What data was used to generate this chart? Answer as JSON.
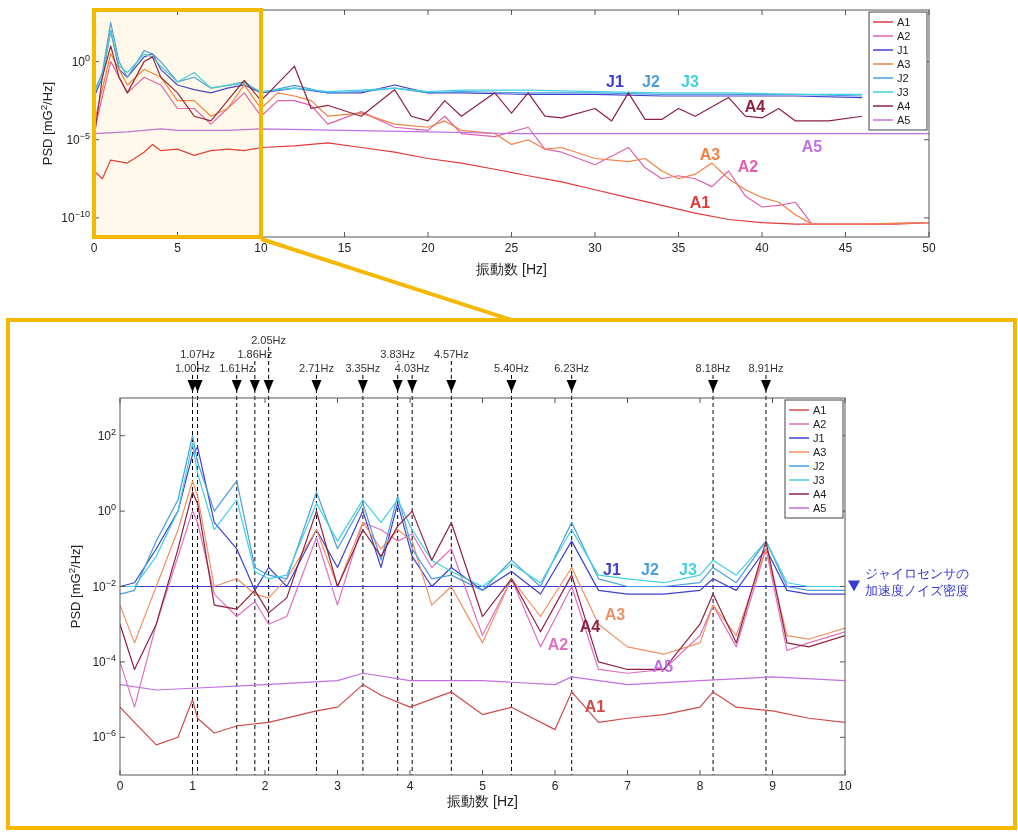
{
  "chart_data": [
    {
      "type": "line",
      "xlabel": "振動数 [Hz]",
      "ylabel": "PSD [mG$^{2}$/Hz]",
      "log": "y",
      "xlim": [
        0,
        50
      ],
      "xticks": [
        0,
        5,
        10,
        15,
        20,
        25,
        30,
        35,
        40,
        45,
        50
      ],
      "ylim": [
        6e-12,
        2000
      ],
      "yticks": [
        {
          "value": 1e-10,
          "label": "10$^{−10}$"
        },
        {
          "value": 1e-05,
          "label": "10$^{−5}$"
        },
        {
          "value": 1,
          "label": "10$^{0}$"
        }
      ],
      "legend": "top right",
      "grid": false,
      "bands": [
        {
          "axis": "x",
          "from": 0,
          "to": 10,
          "color": "#f5b800"
        }
      ],
      "series": [
        {
          "name": "A1",
          "color": "#e03a3a",
          "x": [
            0,
            0.5,
            1,
            2,
            3,
            3.5,
            4,
            5,
            6,
            7,
            8,
            9,
            10,
            12,
            14,
            16,
            18,
            20,
            22,
            24,
            26,
            28,
            30,
            32,
            34,
            36,
            38,
            40,
            42,
            44,
            46,
            48,
            50
          ],
          "values": [
            1e-07,
            3.2e-08,
            5e-07,
            3.2e-07,
            1.6e-06,
            5e-06,
            2e-06,
            2.5e-06,
            1e-06,
            2e-06,
            2.5e-06,
            2e-06,
            3.2e-06,
            4e-06,
            6.3e-06,
            3.2e-06,
            1.6e-06,
            6.3e-07,
            3.2e-07,
            1.3e-07,
            5e-08,
            2e-08,
            6.3e-09,
            2e-09,
            6.3e-10,
            2e-10,
            7.9e-11,
            5e-11,
            4e-11,
            4e-11,
            4e-11,
            4e-11,
            5e-11
          ]
        },
        {
          "name": "A2",
          "color": "#e060b0",
          "x": [
            0,
            1,
            2,
            3,
            4,
            5,
            6,
            7,
            8,
            9,
            10,
            11,
            12,
            13,
            14,
            16,
            18,
            20,
            21,
            22,
            24,
            26,
            27,
            28,
            30,
            32,
            33,
            34,
            35,
            36,
            37,
            38,
            39,
            40,
            41,
            42,
            43,
            46,
            50
          ],
          "values": [
            3.2e-05,
            1,
            0.01,
            0.1,
            0.032,
            0.001,
            0.001,
            0.0001,
            0.001,
            0.01,
            0.00032,
            0.0032,
            0.0032,
            0.0016,
            0.0001,
            0.00063,
            6.3e-05,
            4e-05,
            0.00032,
            2.5e-05,
            1.6e-05,
            6.3e-05,
            2.5e-06,
            1.6e-06,
            2.5e-07,
            3.2e-06,
            1.6e-07,
            3.2e-08,
            5e-08,
            3.2e-08,
            1e-08,
            1e-07,
            2.5e-09,
            5e-10,
            6.3e-10,
            1e-09,
            4e-11,
            4e-11,
            5e-11
          ]
        },
        {
          "name": "J1",
          "color": "#4040d0",
          "x": [
            0,
            0.5,
            1,
            1.5,
            2,
            3,
            3.5,
            4,
            5,
            6,
            7,
            8,
            9,
            10,
            12,
            14,
            16,
            18,
            20,
            22,
            26,
            30,
            34,
            38,
            42,
            46
          ],
          "values": [
            0.005,
            0.1,
            100,
            0.32,
            0.1,
            2,
            3.2,
            0.32,
            0.032,
            0.016,
            0.01,
            0.02,
            0.032,
            0.01,
            0.02,
            0.01,
            0.01,
            0.032,
            0.01,
            0.01,
            0.0079,
            0.0079,
            0.0063,
            0.0063,
            0.0063,
            0.005
          ]
        },
        {
          "name": "A3",
          "color": "#f08040",
          "x": [
            0,
            1,
            2,
            3,
            4,
            5,
            6,
            7,
            8,
            9,
            10,
            11,
            12,
            13,
            14,
            16,
            18,
            20,
            21,
            22,
            24,
            25,
            26,
            27,
            28,
            30,
            32,
            33,
            34,
            35,
            36,
            37,
            38,
            39,
            40,
            41,
            42,
            43,
            46,
            50
          ],
          "values": [
            0.0001,
            3.2,
            0.032,
            0.32,
            0.1,
            0.0032,
            0.0032,
            0.00032,
            0.001,
            0.032,
            0.001,
            0.01,
            0.0063,
            0.0032,
            0.00032,
            0.0005,
            0.0001,
            6.3e-05,
            0.00016,
            4e-05,
            2.5e-05,
            5e-06,
            1e-05,
            2.5e-06,
            3.2e-06,
            6.3e-07,
            4e-07,
            6.3e-07,
            1e-07,
            3.2e-08,
            6.3e-08,
            3.2e-07,
            3.2e-08,
            6.3e-09,
            2e-09,
            1e-09,
            1.6e-10,
            4e-11,
            4e-11,
            5e-11
          ]
        },
        {
          "name": "J2",
          "color": "#4a9ee0",
          "x": [
            0,
            0.5,
            1,
            1.5,
            2,
            3,
            3.5,
            4,
            5,
            6,
            7,
            8,
            9,
            10,
            12,
            14,
            16,
            18,
            20,
            22,
            26,
            30,
            34,
            38,
            42,
            46
          ],
          "values": [
            0.01,
            0.2,
            316,
            1,
            0.1,
            5,
            3.2,
            1,
            0.05,
            0.1,
            0.02,
            0.03,
            0.05,
            0.01,
            0.03,
            0.01,
            0.012,
            0.02,
            0.01,
            0.012,
            0.01,
            0.01,
            0.008,
            0.008,
            0.008,
            0.0063
          ]
        },
        {
          "name": "J3",
          "color": "#40d0e0",
          "x": [
            0,
            0.5,
            1,
            1.5,
            2,
            3,
            3.5,
            4,
            5,
            6,
            7,
            8,
            9,
            10,
            12,
            14,
            16,
            18,
            20,
            22,
            26,
            30,
            34,
            38,
            42,
            46
          ],
          "values": [
            0.01,
            0.1,
            100,
            0.5,
            0.2,
            3,
            2,
            0.5,
            0.05,
            0.2,
            0.02,
            0.03,
            0.04,
            0.012,
            0.02,
            0.012,
            0.015,
            0.02,
            0.012,
            0.015,
            0.015,
            0.012,
            0.01,
            0.01,
            0.008,
            0.008
          ]
        },
        {
          "name": "A4",
          "color": "#902040",
          "x": [
            0,
            0.5,
            1,
            1.5,
            2,
            3,
            3.5,
            4,
            5,
            6,
            7,
            8,
            9,
            10,
            12,
            13,
            14,
            16,
            18,
            19,
            20,
            21,
            22,
            24,
            25,
            26,
            27,
            28,
            30,
            31,
            32,
            33,
            34,
            35,
            36,
            38,
            39,
            40,
            41,
            42,
            44,
            46
          ],
          "values": [
            1e-05,
            0.1,
            10,
            0.1,
            0.01,
            1,
            2,
            0.1,
            0.01,
            0.00032,
            0.00016,
            0.0032,
            0.063,
            0.0032,
            0.5,
            0.001,
            0.0016,
            0.00032,
            0.016,
            0.00032,
            0.00016,
            0.0032,
            0.00032,
            0.01,
            0.0005,
            0.01,
            0.00032,
            0.00025,
            0.001,
            0.00016,
            0.01,
            0.0002,
            0.0002,
            0.001,
            0.00032,
            0.005,
            0.00032,
            0.00025,
            0.001,
            0.00016,
            0.00016,
            0.00032
          ]
        },
        {
          "name": "A5",
          "color": "#c070e0",
          "x": [
            0,
            2,
            4,
            5,
            8,
            10,
            15,
            20,
            25,
            30,
            35,
            40,
            45,
            50
          ],
          "values": [
            2.5e-05,
            3.2e-05,
            5e-05,
            4e-05,
            4e-05,
            5e-05,
            4e-05,
            3.2e-05,
            2.5e-05,
            2.5e-05,
            2.5e-05,
            2.5e-05,
            2.5e-05,
            2.5e-05
          ]
        }
      ]
    },
    {
      "type": "line",
      "xlabel": "振動数 [Hz]",
      "ylabel": "PSD [mG$^{2}$/Hz]",
      "log": "y",
      "xlim": [
        0,
        10
      ],
      "xticks": [
        0,
        1,
        2,
        3,
        4,
        5,
        6,
        7,
        8,
        9,
        10
      ],
      "ylim": [
        1e-07,
        1000
      ],
      "yticks": [
        {
          "value": 1e-06,
          "label": "10$^{−6}$"
        },
        {
          "value": 0.0001,
          "label": "10$^{−4}$"
        },
        {
          "value": 0.01,
          "label": "10$^{−2}$"
        },
        {
          "value": 1,
          "label": "10$^{0}$"
        },
        {
          "value": 100,
          "label": "10$^{2}$"
        }
      ],
      "legend": "top right",
      "grid": false,
      "ref_lines": [
        {
          "axis": "x",
          "value": 1.0,
          "label": "1.00Hz",
          "line_style": "dashed"
        },
        {
          "axis": "x",
          "value": 1.07,
          "label": "1.07Hz",
          "line_style": "dashed"
        },
        {
          "axis": "x",
          "value": 1.61,
          "label": "1.61Hz",
          "line_style": "dashed"
        },
        {
          "axis": "x",
          "value": 1.86,
          "label": "1.86Hz",
          "line_style": "dashed"
        },
        {
          "axis": "x",
          "value": 2.05,
          "label": "2.05Hz",
          "line_style": "dashed"
        },
        {
          "axis": "x",
          "value": 2.71,
          "label": "2.71Hz",
          "line_style": "dashed"
        },
        {
          "axis": "x",
          "value": 3.35,
          "label": "3.35Hz",
          "line_style": "dashed"
        },
        {
          "axis": "x",
          "value": 3.83,
          "label": "3.83Hz",
          "line_style": "dashed"
        },
        {
          "axis": "x",
          "value": 4.03,
          "label": "4.03Hz",
          "line_style": "dashed"
        },
        {
          "axis": "x",
          "value": 4.57,
          "label": "4.57Hz",
          "line_style": "dashed"
        },
        {
          "axis": "x",
          "value": 5.4,
          "label": "5.40Hz",
          "line_style": "dashed"
        },
        {
          "axis": "x",
          "value": 6.23,
          "label": "6.23Hz",
          "line_style": "dashed"
        },
        {
          "axis": "x",
          "value": 8.18,
          "label": "8.18Hz",
          "line_style": "dashed"
        },
        {
          "axis": "x",
          "value": 8.91,
          "label": "8.91Hz",
          "line_style": "dashed"
        },
        {
          "axis": "y",
          "value": 0.01,
          "label": "ジャイロセンサの加速度ノイズ密度",
          "color": "#3a3ad0",
          "line_style": "solid"
        }
      ],
      "series": [
        {
          "name": "A1",
          "color": "#d04a4a",
          "x": [
            0,
            0.2,
            0.5,
            0.8,
            1,
            1.07,
            1.3,
            1.61,
            2.05,
            2.71,
            3,
            3.35,
            3.6,
            4,
            4.57,
            5,
            5.4,
            6,
            6.23,
            6.6,
            7,
            7.5,
            8,
            8.18,
            8.5,
            9,
            9.5,
            10
          ],
          "values": [
            6.3e-06,
            2.5e-06,
            6.3e-07,
            1e-06,
            1e-05,
            3.2e-06,
            1.3e-06,
            2e-06,
            2.5e-06,
            5e-06,
            6.3e-06,
            2.5e-05,
            1.3e-05,
            6.3e-06,
            1.6e-05,
            4e-06,
            6.3e-06,
            1.6e-06,
            1.6e-05,
            2.5e-06,
            3.2e-06,
            4e-06,
            6.3e-06,
            1.6e-05,
            6.3e-06,
            5e-06,
            3.2e-06,
            2.5e-06
          ]
        },
        {
          "name": "A2",
          "color": "#e070c0",
          "x": [
            0,
            0.2,
            0.5,
            0.8,
            1.0,
            1.07,
            1.3,
            1.61,
            1.86,
            2.05,
            2.3,
            2.71,
            3,
            3.35,
            3.6,
            3.83,
            4.03,
            4.3,
            4.57,
            5,
            5.4,
            5.8,
            6.23,
            6.6,
            7,
            7.5,
            8,
            8.18,
            8.5,
            8.91,
            9.2,
            9.5,
            10
          ],
          "values": [
            0.0001,
            6.3e-06,
            0.001,
            0.063,
            1,
            0.5,
            0.0063,
            0.0016,
            0.004,
            0.001,
            0.0016,
            0.2,
            0.0032,
            0.5,
            0.32,
            0.16,
            0.25,
            0.032,
            0.1,
            0.0005,
            0.016,
            0.00025,
            0.01,
            6.3e-05,
            5e-05,
            6.3e-05,
            0.0005,
            0.0032,
            0.00025,
            0.1,
            0.0002,
            0.00032,
            0.00063
          ]
        },
        {
          "name": "J1",
          "color": "#4040d0",
          "x": [
            0,
            0.2,
            0.5,
            0.8,
            1.0,
            1.07,
            1.3,
            1.61,
            1.86,
            2.05,
            2.3,
            2.71,
            3,
            3.35,
            3.6,
            3.83,
            4.03,
            4.3,
            4.57,
            5,
            5.4,
            5.8,
            6.23,
            6.6,
            7,
            7.5,
            8,
            8.18,
            8.5,
            8.91,
            9.2,
            9.5,
            10
          ],
          "values": [
            0.01,
            0.0126,
            0.1,
            1,
            31.6,
            50,
            0.5,
            0.1,
            0.0079,
            0.032,
            0.01,
            0.32,
            0.032,
            1,
            0.032,
            1.6,
            0.063,
            0.01,
            0.032,
            0.0079,
            0.025,
            0.0063,
            0.16,
            0.0079,
            0.0063,
            0.0063,
            0.0079,
            0.016,
            0.0079,
            0.1,
            0.0079,
            0.0063,
            0.0063
          ]
        },
        {
          "name": "A3",
          "color": "#f09060",
          "x": [
            0,
            0.2,
            0.5,
            0.8,
            1.0,
            1.07,
            1.3,
            1.61,
            1.86,
            2.05,
            2.3,
            2.71,
            3,
            3.35,
            3.6,
            3.83,
            4.03,
            4.3,
            4.57,
            5,
            5.4,
            5.8,
            6.23,
            6.6,
            7,
            7.5,
            8,
            8.18,
            8.5,
            8.91,
            9.2,
            9.5,
            10
          ],
          "values": [
            0.0032,
            0.00032,
            0.01,
            0.32,
            6.3,
            2.5,
            0.01,
            0.016,
            0.0063,
            0.005,
            0.016,
            0.32,
            0.01,
            0.5,
            0.1,
            0.32,
            0.16,
            0.0032,
            0.01,
            0.00032,
            0.016,
            0.0016,
            0.032,
            0.001,
            0.00025,
            0.00016,
            0.00032,
            0.0032,
            0.0005,
            0.1,
            0.0005,
            0.0004,
            0.00079
          ]
        },
        {
          "name": "J2",
          "color": "#4a9ee0",
          "x": [
            0,
            0.2,
            0.5,
            0.8,
            1.0,
            1.07,
            1.3,
            1.61,
            1.86,
            2.05,
            2.3,
            2.71,
            3,
            3.35,
            3.6,
            3.83,
            4.03,
            4.3,
            4.57,
            5,
            5.4,
            5.8,
            6.23,
            6.6,
            7,
            7.5,
            8,
            8.18,
            8.5,
            8.91,
            9.2,
            9.5,
            10
          ],
          "values": [
            0.0063,
            0.0079,
            0.16,
            2,
            100,
            20,
            1,
            6.3,
            0.032,
            0.02,
            0.016,
            3.2,
            0.1,
            1.6,
            0.05,
            2.5,
            0.1,
            0.016,
            0.02,
            0.0079,
            0.05,
            0.01,
            0.5,
            0.016,
            0.01,
            0.01,
            0.0126,
            0.032,
            0.0126,
            0.16,
            0.01,
            0.0079,
            0.0079
          ]
        },
        {
          "name": "J3",
          "color": "#40d0e0",
          "x": [
            0,
            0.2,
            0.5,
            0.8,
            1.0,
            1.07,
            1.3,
            1.61,
            1.86,
            2.05,
            2.3,
            2.71,
            3,
            3.35,
            3.6,
            3.83,
            4.03,
            4.3,
            4.57,
            5,
            5.4,
            5.8,
            6.23,
            6.6,
            7,
            7.5,
            8,
            8.18,
            8.5,
            8.91,
            9.2,
            9.5,
            10
          ],
          "values": [
            0.01,
            0.01,
            0.063,
            1,
            63,
            10,
            0.32,
            2,
            0.025,
            0.016,
            0.02,
            1.6,
            0.16,
            2,
            0.5,
            2,
            0.32,
            0.05,
            0.025,
            0.01,
            0.04,
            0.0126,
            0.32,
            0.02,
            0.016,
            0.0126,
            0.02,
            0.05,
            0.02,
            0.16,
            0.0126,
            0.01,
            0.01
          ]
        },
        {
          "name": "A4",
          "color": "#902040",
          "x": [
            0,
            0.2,
            0.5,
            0.8,
            1.0,
            1.07,
            1.3,
            1.61,
            1.86,
            2.05,
            2.3,
            2.71,
            3,
            3.35,
            3.6,
            3.83,
            4.03,
            4.3,
            4.57,
            5,
            5.4,
            5.8,
            6.23,
            6.6,
            7,
            7.5,
            8,
            8.18,
            8.5,
            8.91,
            9.2,
            9.5,
            10
          ],
          "values": [
            0.001,
            6.3e-05,
            0.001,
            0.1,
            3.2,
            1.6,
            0.0032,
            0.0025,
            0.0079,
            0.002,
            0.005,
            1,
            0.01,
            0.32,
            0.063,
            0.4,
            1,
            0.05,
            0.5,
            0.0016,
            0.016,
            0.00063,
            0.02,
            0.0001,
            6.3e-05,
            6.3e-05,
            0.001,
            0.0063,
            0.00032,
            0.16,
            0.00032,
            0.00025,
            0.0005
          ]
        },
        {
          "name": "A5",
          "color": "#c070e0",
          "x": [
            0,
            0.5,
            1,
            2,
            3,
            3.35,
            4,
            5,
            6,
            6.23,
            7,
            8,
            9,
            10
          ],
          "values": [
            2.5e-05,
            1.8e-05,
            2e-05,
            2.5e-05,
            3.2e-05,
            5e-05,
            3.2e-05,
            3.2e-05,
            2.5e-05,
            4e-05,
            2.5e-05,
            3.2e-05,
            4e-05,
            3.2e-05
          ]
        }
      ]
    }
  ]
}
